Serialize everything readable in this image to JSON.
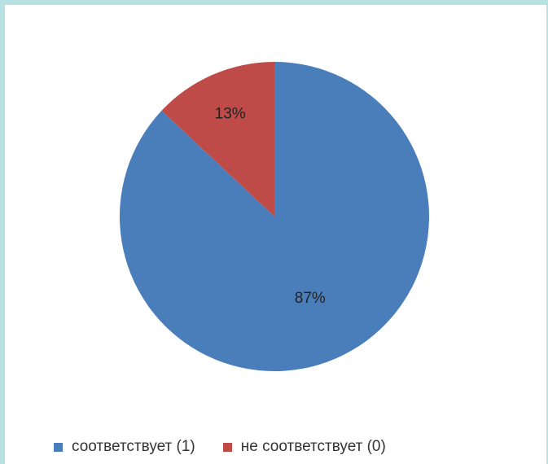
{
  "colors": {
    "page_border": "#b7e1e3",
    "series_1": "#4a7ebb",
    "series_0": "#be4b48"
  },
  "chart_data": {
    "type": "pie",
    "categories": [
      "соответствует (1)",
      "не соответствует (0)"
    ],
    "values": [
      87,
      13
    ],
    "data_labels": [
      "87%",
      "13%"
    ],
    "colors": [
      "#4a7ebb",
      "#be4b48"
    ],
    "title": "",
    "legend": "bottom"
  },
  "legend": {
    "items": [
      {
        "label": "соответствует (1)",
        "color": "#4a7ebb"
      },
      {
        "label": "не соответствует (0)",
        "color": "#be4b48"
      }
    ]
  }
}
